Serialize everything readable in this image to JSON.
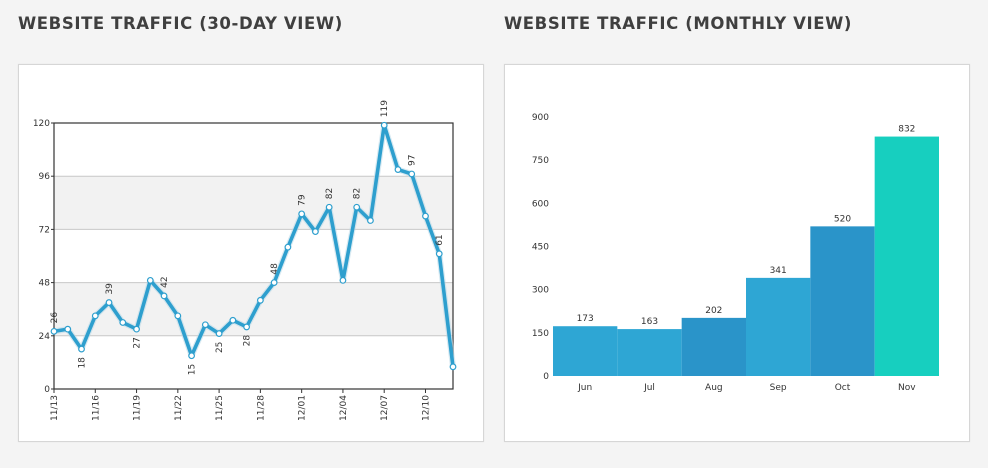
{
  "headings": {
    "daily": "WEBSITE TRAFFIC (30-DAY VIEW)",
    "monthly": "WEBSITE TRAFFIC (MONTHLY VIEW)"
  },
  "colors": {
    "line": "#2e9fce",
    "bar": "#2ea6d4",
    "bar_alt": "#2a94c9",
    "bar_highlight": "#17cfbf",
    "band": "#f2f2f2",
    "grid": "#c8c8c8",
    "axis": "#333333"
  },
  "chart_data": [
    {
      "type": "line",
      "x": [
        "11/13",
        "11/14",
        "11/15",
        "11/16",
        "11/17",
        "11/18",
        "11/19",
        "11/20",
        "11/21",
        "11/22",
        "11/23",
        "11/24",
        "11/25",
        "11/26",
        "11/27",
        "11/28",
        "11/29",
        "11/30",
        "12/01",
        "12/02",
        "12/03",
        "12/04",
        "12/05",
        "12/06",
        "12/07",
        "12/08",
        "12/09",
        "12/10",
        "12/11",
        "12/12"
      ],
      "x_tick_labels": [
        "11/13",
        "11/16",
        "11/19",
        "11/22",
        "11/25",
        "11/28",
        "12/01",
        "12/04",
        "12/07",
        "12/10"
      ],
      "series": [
        {
          "values": [
            26,
            27,
            18,
            33,
            39,
            30,
            27,
            49,
            42,
            33,
            15,
            29,
            25,
            31,
            28,
            40,
            48,
            64,
            79,
            71,
            82,
            49,
            82,
            76,
            119,
            99,
            97,
            78,
            61,
            10
          ]
        }
      ],
      "point_labels": [
        {
          "index": 0,
          "text": "26"
        },
        {
          "index": 2,
          "text": "18"
        },
        {
          "index": 4,
          "text": "39"
        },
        {
          "index": 6,
          "text": "27"
        },
        {
          "index": 8,
          "text": "42"
        },
        {
          "index": 10,
          "text": "15"
        },
        {
          "index": 12,
          "text": "25"
        },
        {
          "index": 14,
          "text": "28"
        },
        {
          "index": 16,
          "text": "48"
        },
        {
          "index": 18,
          "text": "79"
        },
        {
          "index": 20,
          "text": "82"
        },
        {
          "index": 22,
          "text": "82"
        },
        {
          "index": 24,
          "text": "119"
        },
        {
          "index": 26,
          "text": "97"
        },
        {
          "index": 28,
          "text": "61"
        }
      ],
      "y_ticks": [
        0,
        24,
        48,
        72,
        96,
        120
      ],
      "ylim": [
        0,
        120
      ],
      "grid": true,
      "legend": "none"
    },
    {
      "type": "bar",
      "categories": [
        "Jun",
        "Jul",
        "Aug",
        "Sep",
        "Oct",
        "Nov"
      ],
      "values": [
        173,
        163,
        202,
        341,
        520,
        832
      ],
      "y_ticks": [
        0,
        150,
        300,
        450,
        600,
        750,
        900
      ],
      "ylim": [
        0,
        900
      ],
      "grid": false,
      "legend": "none"
    }
  ]
}
